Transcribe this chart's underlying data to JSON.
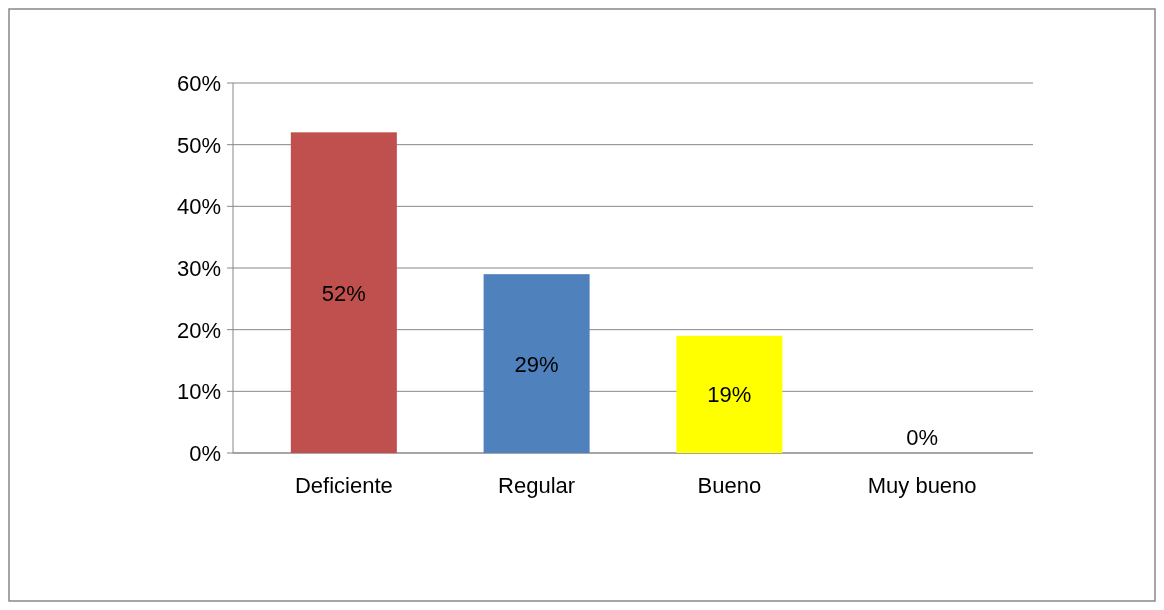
{
  "chart_data": {
    "type": "bar",
    "categories": [
      "Deficiente",
      "Regular",
      "Bueno",
      "Muy bueno"
    ],
    "values": [
      52,
      29,
      19,
      0
    ],
    "colors": [
      "#c0504d",
      "#4f81bd",
      "#ffff00",
      "#4f81bd"
    ],
    "value_labels": [
      "52%",
      "29%",
      "19%",
      "0%"
    ],
    "ylim": [
      0,
      60
    ],
    "yticks": [
      {
        "value": 0,
        "label": "0%"
      },
      {
        "value": 10,
        "label": "10%"
      },
      {
        "value": 20,
        "label": "20%"
      },
      {
        "value": 30,
        "label": "30%"
      },
      {
        "value": 40,
        "label": "40%"
      },
      {
        "value": 50,
        "label": "50%"
      },
      {
        "value": 60,
        "label": "60%"
      }
    ],
    "grid": "y"
  }
}
